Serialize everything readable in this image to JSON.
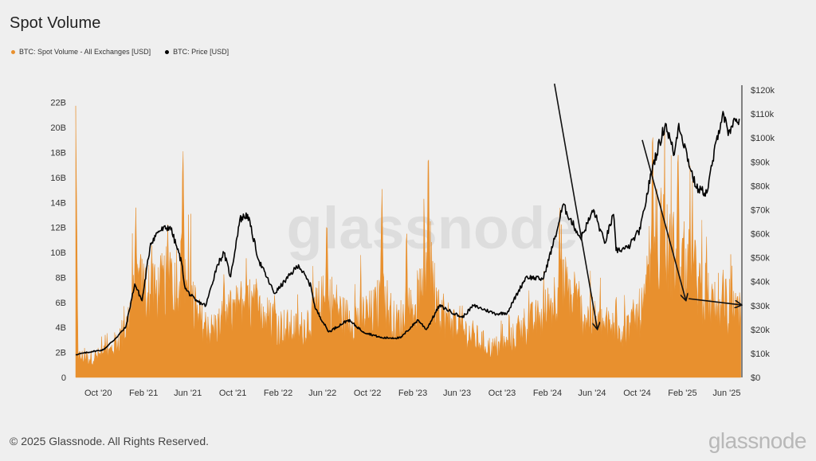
{
  "title": "Spot Volume",
  "legend": [
    {
      "label": "BTC: Spot Volume - All Exchanges [USD]",
      "color": "#e8902e"
    },
    {
      "label": "BTC: Price [USD]",
      "color": "#000000"
    }
  ],
  "footer": "© 2025 Glassnode. All Rights Reserved.",
  "brand": "glassnode",
  "watermark": "glassnode",
  "colors": {
    "volume": "#e8902e",
    "price": "#000000",
    "background": "#efefef",
    "grid": "#dddddd"
  },
  "chart_data": {
    "type": "area",
    "title": "Spot Volume",
    "x_range": [
      "2020-08-01",
      "2025-07-10"
    ],
    "x_ticks": [
      {
        "date": "2020-10-01",
        "label": "Oct '20"
      },
      {
        "date": "2021-02-01",
        "label": "Feb '21"
      },
      {
        "date": "2021-06-01",
        "label": "Jun '21"
      },
      {
        "date": "2021-10-01",
        "label": "Oct '21"
      },
      {
        "date": "2022-02-01",
        "label": "Feb '22"
      },
      {
        "date": "2022-06-01",
        "label": "Jun '22"
      },
      {
        "date": "2022-10-01",
        "label": "Oct '22"
      },
      {
        "date": "2023-02-01",
        "label": "Feb '23"
      },
      {
        "date": "2023-06-01",
        "label": "Jun '23"
      },
      {
        "date": "2023-10-01",
        "label": "Oct '23"
      },
      {
        "date": "2024-02-01",
        "label": "Feb '24"
      },
      {
        "date": "2024-06-01",
        "label": "Jun '24"
      },
      {
        "date": "2024-10-01",
        "label": "Oct '24"
      },
      {
        "date": "2025-02-01",
        "label": "Feb '25"
      },
      {
        "date": "2025-06-01",
        "label": "Jun '25"
      }
    ],
    "y_left": {
      "range": [
        0,
        23
      ],
      "unit": "B",
      "ticks": [
        {
          "value": 0,
          "label": "0"
        },
        {
          "value": 2,
          "label": "2B"
        },
        {
          "value": 4,
          "label": "4B"
        },
        {
          "value": 6,
          "label": "6B"
        },
        {
          "value": 8,
          "label": "8B"
        },
        {
          "value": 10,
          "label": "10B"
        },
        {
          "value": 12,
          "label": "12B"
        },
        {
          "value": 14,
          "label": "14B"
        },
        {
          "value": 16,
          "label": "16B"
        },
        {
          "value": 18,
          "label": "18B"
        },
        {
          "value": 20,
          "label": "20B"
        },
        {
          "value": 22,
          "label": "22B"
        }
      ]
    },
    "y_right": {
      "range": [
        0,
        120000
      ],
      "ticks": [
        {
          "value": 0,
          "label": "$0"
        },
        {
          "value": 10000,
          "label": "$10k"
        },
        {
          "value": 20000,
          "label": "$20k"
        },
        {
          "value": 30000,
          "label": "$30k"
        },
        {
          "value": 40000,
          "label": "$40k"
        },
        {
          "value": 50000,
          "label": "$50k"
        },
        {
          "value": 60000,
          "label": "$60k"
        },
        {
          "value": 70000,
          "label": "$70k"
        },
        {
          "value": 80000,
          "label": "$80k"
        },
        {
          "value": 90000,
          "label": "$90k"
        },
        {
          "value": 100000,
          "label": "$100k"
        },
        {
          "value": 110000,
          "label": "$110k"
        },
        {
          "value": 120000,
          "label": "$120k"
        }
      ]
    },
    "series": [
      {
        "name": "BTC: Spot Volume - All Exchanges [USD]",
        "axis": "left",
        "color": "#e8902e",
        "base_points": [
          {
            "date": "2020-08-01",
            "value": 1.8
          },
          {
            "date": "2020-09-15",
            "value": 1.7
          },
          {
            "date": "2020-11-01",
            "value": 2.2
          },
          {
            "date": "2020-12-15",
            "value": 4.2
          },
          {
            "date": "2021-01-15",
            "value": 8.0
          },
          {
            "date": "2021-03-01",
            "value": 7.0
          },
          {
            "date": "2021-04-15",
            "value": 8.5
          },
          {
            "date": "2021-05-20",
            "value": 9.0
          },
          {
            "date": "2021-07-01",
            "value": 5.0
          },
          {
            "date": "2021-08-01",
            "value": 4.0
          },
          {
            "date": "2021-09-15",
            "value": 5.0
          },
          {
            "date": "2021-11-01",
            "value": 6.5
          },
          {
            "date": "2021-12-15",
            "value": 5.5
          },
          {
            "date": "2022-02-01",
            "value": 4.5
          },
          {
            "date": "2022-04-01",
            "value": 4.0
          },
          {
            "date": "2022-06-15",
            "value": 7.0
          },
          {
            "date": "2022-08-01",
            "value": 5.0
          },
          {
            "date": "2022-10-15",
            "value": 5.5
          },
          {
            "date": "2022-11-15",
            "value": 7.0
          },
          {
            "date": "2022-12-15",
            "value": 4.5
          },
          {
            "date": "2023-02-01",
            "value": 6.0
          },
          {
            "date": "2023-03-20",
            "value": 8.5
          },
          {
            "date": "2023-05-01",
            "value": 5.0
          },
          {
            "date": "2023-07-01",
            "value": 3.8
          },
          {
            "date": "2023-09-01",
            "value": 2.5
          },
          {
            "date": "2023-10-15",
            "value": 2.8
          },
          {
            "date": "2023-12-01",
            "value": 4.5
          },
          {
            "date": "2024-01-15",
            "value": 5.0
          },
          {
            "date": "2024-03-15",
            "value": 8.0
          },
          {
            "date": "2024-05-01",
            "value": 5.5
          },
          {
            "date": "2024-07-01",
            "value": 4.5
          },
          {
            "date": "2024-09-01",
            "value": 4.0
          },
          {
            "date": "2024-10-20",
            "value": 6.0
          },
          {
            "date": "2024-11-20",
            "value": 12.0
          },
          {
            "date": "2024-12-20",
            "value": 11.0
          },
          {
            "date": "2025-01-25",
            "value": 10.0
          },
          {
            "date": "2025-03-01",
            "value": 9.0
          },
          {
            "date": "2025-04-15",
            "value": 6.5
          },
          {
            "date": "2025-05-20",
            "value": 6.0
          },
          {
            "date": "2025-07-10",
            "value": 5.5
          }
        ],
        "spikes": [
          {
            "date": "2020-08-01",
            "value": 23.0
          },
          {
            "date": "2020-10-20",
            "value": 3.5
          },
          {
            "date": "2021-01-11",
            "value": 14.6
          },
          {
            "date": "2021-02-23",
            "value": 12.0
          },
          {
            "date": "2021-04-18",
            "value": 11.5
          },
          {
            "date": "2021-05-19",
            "value": 20.6
          },
          {
            "date": "2021-06-22",
            "value": 8.0
          },
          {
            "date": "2021-09-07",
            "value": 9.8
          },
          {
            "date": "2021-11-10",
            "value": 8.5
          },
          {
            "date": "2021-12-04",
            "value": 9.0
          },
          {
            "date": "2022-01-22",
            "value": 7.5
          },
          {
            "date": "2022-05-10",
            "value": 8.0
          },
          {
            "date": "2022-06-13",
            "value": 15.2
          },
          {
            "date": "2022-11-09",
            "value": 17.5
          },
          {
            "date": "2023-01-15",
            "value": 13.0
          },
          {
            "date": "2023-03-15",
            "value": 20.8
          },
          {
            "date": "2023-06-15",
            "value": 6.0
          },
          {
            "date": "2024-03-05",
            "value": 14.0
          },
          {
            "date": "2024-04-15",
            "value": 10.0
          },
          {
            "date": "2024-08-05",
            "value": 8.0
          },
          {
            "date": "2024-11-12",
            "value": 22.9
          },
          {
            "date": "2024-12-05",
            "value": 18.0
          },
          {
            "date": "2025-01-20",
            "value": 22.0
          },
          {
            "date": "2025-02-28",
            "value": 16.0
          },
          {
            "date": "2025-04-07",
            "value": 12.0
          },
          {
            "date": "2025-05-22",
            "value": 10.0
          },
          {
            "date": "2025-07-01",
            "value": 7.7
          }
        ]
      },
      {
        "name": "BTC: Price [USD]",
        "axis": "right",
        "color": "#000000",
        "points": [
          {
            "date": "2020-08-01",
            "value": 9500
          },
          {
            "date": "2020-09-15",
            "value": 10800
          },
          {
            "date": "2020-10-15",
            "value": 11500
          },
          {
            "date": "2020-11-15",
            "value": 16000
          },
          {
            "date": "2020-12-15",
            "value": 21000
          },
          {
            "date": "2021-01-08",
            "value": 39000
          },
          {
            "date": "2021-01-28",
            "value": 32000
          },
          {
            "date": "2021-02-20",
            "value": 56000
          },
          {
            "date": "2021-03-13",
            "value": 61000
          },
          {
            "date": "2021-04-14",
            "value": 63000
          },
          {
            "date": "2021-05-15",
            "value": 48000
          },
          {
            "date": "2021-05-25",
            "value": 37000
          },
          {
            "date": "2021-06-22",
            "value": 32000
          },
          {
            "date": "2021-07-20",
            "value": 30000
          },
          {
            "date": "2021-08-20",
            "value": 47000
          },
          {
            "date": "2021-09-07",
            "value": 52000
          },
          {
            "date": "2021-09-25",
            "value": 42000
          },
          {
            "date": "2021-10-20",
            "value": 66000
          },
          {
            "date": "2021-11-10",
            "value": 68000
          },
          {
            "date": "2021-12-10",
            "value": 49000
          },
          {
            "date": "2022-01-22",
            "value": 35000
          },
          {
            "date": "2022-03-28",
            "value": 47000
          },
          {
            "date": "2022-05-01",
            "value": 38000
          },
          {
            "date": "2022-05-12",
            "value": 29000
          },
          {
            "date": "2022-06-18",
            "value": 19000
          },
          {
            "date": "2022-08-10",
            "value": 24000
          },
          {
            "date": "2022-09-20",
            "value": 19000
          },
          {
            "date": "2022-11-09",
            "value": 16500
          },
          {
            "date": "2022-12-30",
            "value": 16500
          },
          {
            "date": "2023-02-15",
            "value": 24000
          },
          {
            "date": "2023-03-10",
            "value": 20000
          },
          {
            "date": "2023-04-14",
            "value": 30000
          },
          {
            "date": "2023-06-15",
            "value": 25000
          },
          {
            "date": "2023-07-15",
            "value": 30000
          },
          {
            "date": "2023-09-15",
            "value": 26500
          },
          {
            "date": "2023-10-15",
            "value": 27000
          },
          {
            "date": "2023-12-05",
            "value": 42000
          },
          {
            "date": "2024-01-20",
            "value": 41000
          },
          {
            "date": "2024-02-28",
            "value": 62000
          },
          {
            "date": "2024-03-14",
            "value": 72000
          },
          {
            "date": "2024-05-01",
            "value": 58000
          },
          {
            "date": "2024-06-05",
            "value": 70000
          },
          {
            "date": "2024-07-05",
            "value": 56000
          },
          {
            "date": "2024-07-29",
            "value": 68000
          },
          {
            "date": "2024-08-05",
            "value": 53000
          },
          {
            "date": "2024-09-06",
            "value": 54000
          },
          {
            "date": "2024-10-10",
            "value": 62000
          },
          {
            "date": "2024-11-12",
            "value": 88000
          },
          {
            "date": "2024-12-17",
            "value": 106000
          },
          {
            "date": "2025-01-10",
            "value": 93000
          },
          {
            "date": "2025-01-22",
            "value": 106000
          },
          {
            "date": "2025-02-25",
            "value": 86000
          },
          {
            "date": "2025-03-11",
            "value": 79000
          },
          {
            "date": "2025-04-08",
            "value": 77000
          },
          {
            "date": "2025-05-10",
            "value": 103000
          },
          {
            "date": "2025-05-22",
            "value": 111000
          },
          {
            "date": "2025-06-05",
            "value": 101000
          },
          {
            "date": "2025-06-25",
            "value": 107000
          },
          {
            "date": "2025-07-05",
            "value": 108000
          }
        ]
      }
    ],
    "annotations": [
      {
        "type": "arrow",
        "from": {
          "date": "2024-02-20",
          "value": 23.5
        },
        "to": {
          "date": "2024-06-15",
          "value": 3.9
        },
        "axis": "left"
      },
      {
        "type": "arrow",
        "from": {
          "date": "2024-10-15",
          "value": 19.0
        },
        "to": {
          "date": "2025-02-10",
          "value": 6.2
        },
        "axis": "left"
      },
      {
        "type": "arrow",
        "from": {
          "date": "2025-02-18",
          "value": 6.3
        },
        "to": {
          "date": "2025-07-10",
          "value": 5.8
        },
        "axis": "left"
      }
    ],
    "grid": false,
    "legend_position": "top-left"
  }
}
